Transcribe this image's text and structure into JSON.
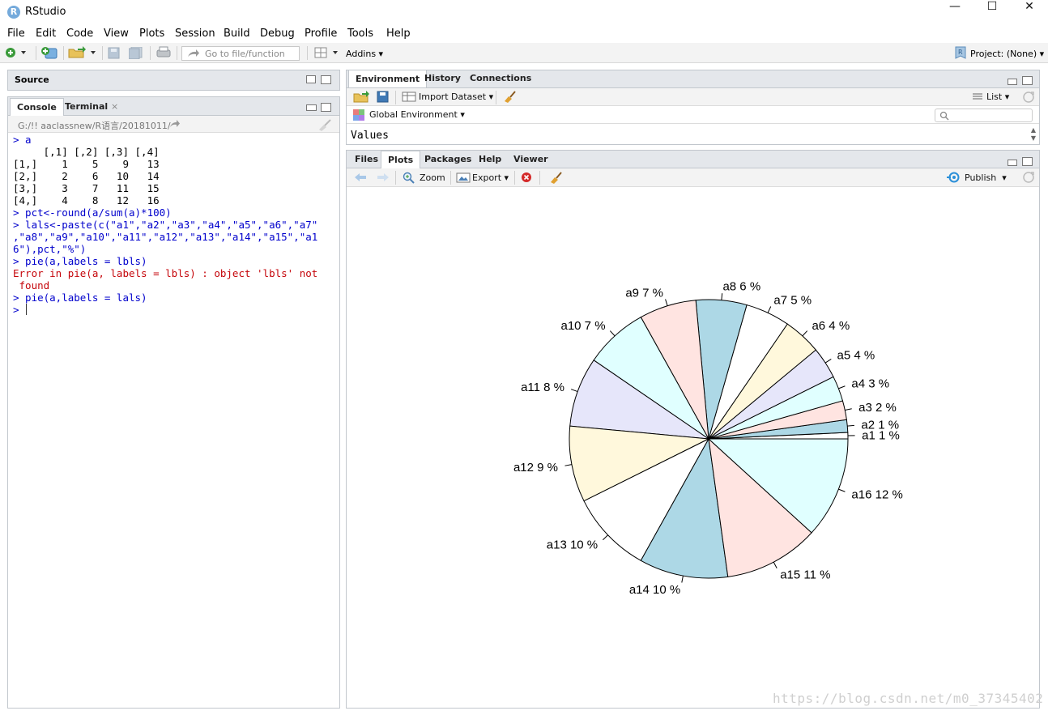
{
  "window": {
    "title": "RStudio",
    "app_icon": "R",
    "controls": [
      "—",
      "☐",
      "✕"
    ]
  },
  "menu": [
    "File",
    "Edit",
    "Code",
    "View",
    "Plots",
    "Session",
    "Build",
    "Debug",
    "Profile",
    "Tools",
    "Help"
  ],
  "toolbar": {
    "goto_placeholder": "Go to file/function",
    "addins": "Addins",
    "project": "Project: (None)"
  },
  "source_pane": {
    "title": "Source"
  },
  "console_pane": {
    "tabs": [
      "Console",
      "Terminal"
    ],
    "terminal_close": "×",
    "path": "G:/!! aaclassnew/R语言/20181011/",
    "lines": [
      {
        "text": "> a",
        "color": "blue"
      },
      {
        "text": "     [,1] [,2] [,3] [,4]",
        "color": "black"
      },
      {
        "text": "[1,]    1    5    9   13",
        "color": "black"
      },
      {
        "text": "[2,]    2    6   10   14",
        "color": "black"
      },
      {
        "text": "[3,]    3    7   11   15",
        "color": "black"
      },
      {
        "text": "[4,]    4    8   12   16",
        "color": "black"
      },
      {
        "text": "> pct<-round(a/sum(a)*100)",
        "color": "blue"
      },
      {
        "text": "> lals<-paste(c(\"a1\",\"a2\",\"a3\",\"a4\",\"a5\",\"a6\",\"a7\"",
        "color": "blue"
      },
      {
        "text": ",\"a8\",\"a9\",\"a10\",\"a11\",\"a12\",\"a13\",\"a14\",\"a15\",\"a1",
        "color": "blue"
      },
      {
        "text": "6\"),pct,\"%\")",
        "color": "blue"
      },
      {
        "text": "> pie(a,labels = lbls)",
        "color": "blue"
      },
      {
        "text": "Error in pie(a, labels = lbls) : object 'lbls' not",
        "color": "red"
      },
      {
        "text": " found",
        "color": "red"
      },
      {
        "text": "> pie(a,labels = lals)",
        "color": "blue"
      },
      {
        "text": "> ",
        "color": "blue"
      }
    ]
  },
  "env_pane": {
    "tabs": [
      "Environment",
      "History",
      "Connections"
    ],
    "import_dataset": "Import Dataset",
    "list_label": "List",
    "global_env": "Global Environment",
    "values_label": "Values"
  },
  "files_pane": {
    "tabs": [
      "Files",
      "Plots",
      "Packages",
      "Help",
      "Viewer"
    ],
    "zoom": "Zoom",
    "export": "Export",
    "publish": "Publish"
  },
  "watermark": "https://blog.csdn.net/m0_37345402",
  "chart_data": {
    "type": "pie",
    "title": "",
    "categories": [
      "a1",
      "a2",
      "a3",
      "a4",
      "a5",
      "a6",
      "a7",
      "a8",
      "a9",
      "a10",
      "a11",
      "a12",
      "a13",
      "a14",
      "a15",
      "a16"
    ],
    "values": [
      1,
      2,
      3,
      4,
      5,
      6,
      7,
      8,
      9,
      10,
      11,
      12,
      13,
      14,
      15,
      16
    ],
    "labels": [
      "a1 1 %",
      "a2 1 %",
      "a3 2 %",
      "a4 3 %",
      "a5 4 %",
      "a6 4 %",
      "a7 5 %",
      "a8 6 %",
      "a9 7 %",
      "a10 7 %",
      "a11 8 %",
      "a12 9 %",
      "a13 10 %",
      "a14 10 %",
      "a15 11 %",
      "a16 12 %"
    ],
    "colors": [
      "#ffffff",
      "#add8e6",
      "#ffe4e1",
      "#e0ffff",
      "#e6e6fa",
      "#fff8dc",
      "#ffffff",
      "#add8e6",
      "#ffe4e1",
      "#e0ffff",
      "#e6e6fa",
      "#fff8dc",
      "#ffffff",
      "#add8e6",
      "#ffe4e1",
      "#e0ffff"
    ],
    "direction": "counterclockwise",
    "start_angle": "3 o'clock"
  }
}
